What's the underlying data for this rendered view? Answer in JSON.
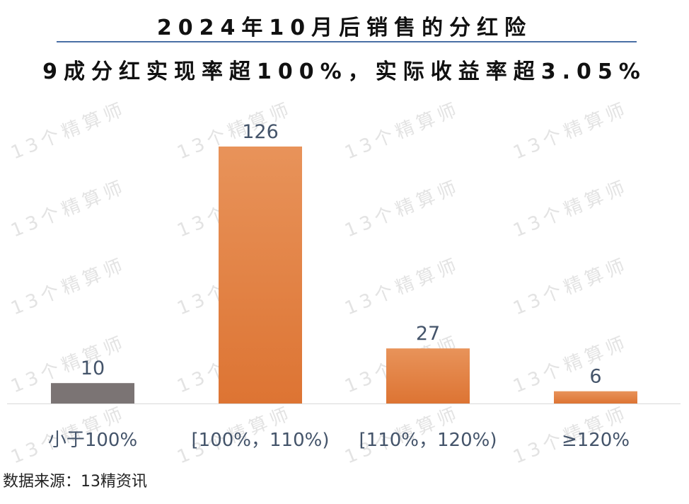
{
  "title": "2024年10月后销售的分红险",
  "subtitle": "9成分红实现率超100%，实际收益率超3.05%",
  "source": "数据来源：13精资讯",
  "watermark": "13个精算师",
  "colors": {
    "bar_gray": "#7b7474",
    "bar_orange_top": "#e8935a",
    "bar_orange_bottom": "#dd7433",
    "label_text": "#44546a",
    "axis_line": "#d9d9d9",
    "title_rule": "#4a6fa5"
  },
  "chart_data": {
    "type": "bar",
    "categories": [
      "小于100%",
      "[100%，110%)",
      "[110%，120%)",
      "≥120%"
    ],
    "values": [
      10,
      126,
      27,
      6
    ],
    "data_labels": [
      "10",
      "126",
      "27",
      "6"
    ],
    "bar_colors": [
      "gray",
      "orange",
      "orange",
      "orange"
    ],
    "ylim": [
      0,
      135
    ],
    "grid": false,
    "legend": "none"
  }
}
